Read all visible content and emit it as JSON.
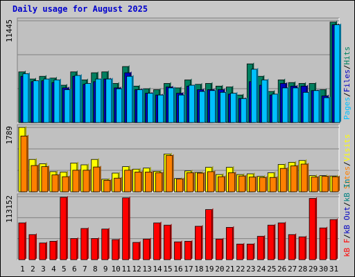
{
  "title": "Daily usage for August 2025",
  "colors": {
    "pages": "#00c0ff",
    "files": "#0000c0",
    "hits": "#008060",
    "visits": "#ffff00",
    "sites": "#ff8000",
    "kbin": "#008080",
    "kbout": "#0000c0",
    "kbf": "#ff0000",
    "weekend_label": "#008040",
    "legend_sep": "#000000"
  },
  "legends": {
    "top": [
      {
        "text": "Pages",
        "color": "#00c0ff"
      },
      {
        "text": "/",
        "color": "#000000"
      },
      {
        "text": "Files",
        "color": "#0000c0"
      },
      {
        "text": "/",
        "color": "#000000"
      },
      {
        "text": "Hits",
        "color": "#008060"
      }
    ],
    "mid": [
      {
        "text": "Sites",
        "color": "#ff8000"
      },
      {
        "text": "/",
        "color": "#000000"
      },
      {
        "text": "Visits",
        "color": "#ffff00"
      }
    ],
    "bot": [
      {
        "text": "kB F",
        "color": "#ff0000"
      },
      {
        "text": "/",
        "color": "#000000"
      },
      {
        "text": "kB Out",
        "color": "#0000c0"
      },
      {
        "text": "/",
        "color": "#000000"
      },
      {
        "text": "kB In",
        "color": "#008080"
      }
    ]
  },
  "chart_data": {
    "type": "bar",
    "title": "Daily usage for August 2025",
    "categories": [
      "1",
      "2",
      "3",
      "4",
      "5",
      "6",
      "7",
      "8",
      "9",
      "10",
      "11",
      "12",
      "13",
      "14",
      "15",
      "16",
      "17",
      "18",
      "19",
      "20",
      "21",
      "22",
      "23",
      "24",
      "25",
      "26",
      "27",
      "28",
      "29",
      "30",
      "31"
    ],
    "weekend_days": [
      2,
      3,
      9,
      10,
      16,
      17,
      23,
      24,
      30,
      31
    ],
    "panels": [
      {
        "id": "hits_files_pages",
        "ymax_label": "11445",
        "ymax": 11445,
        "grid": true,
        "series": [
          {
            "name": "Hits",
            "color": "#008060",
            "values": [
              5700,
              4900,
              5200,
              5000,
              4200,
              5700,
              4800,
              5600,
              5700,
              4400,
              6300,
              4100,
              3800,
              3700,
              4400,
              3900,
              4800,
              4300,
              4400,
              4100,
              4000,
              3100,
              6600,
              5200,
              3500,
              4800,
              4500,
              4400,
              4400,
              3700,
              11300
            ]
          },
          {
            "name": "Files",
            "color": "#0000c0",
            "values": [
              5200,
              4600,
              4700,
              4500,
              3900,
              5200,
              4300,
              4600,
              4900,
              3900,
              5600,
              3700,
              3300,
              3100,
              4000,
              3300,
              4100,
              3700,
              3700,
              3700,
              3200,
              2700,
              4600,
              4200,
              3100,
              4400,
              4100,
              4100,
              3600,
              3000,
              11000
            ]
          },
          {
            "name": "Pages",
            "color": "#00c0ff",
            "values": [
              5500,
              4700,
              4900,
              4800,
              3700,
              5300,
              4400,
              4900,
              4900,
              3800,
              5200,
              3700,
              3300,
              3100,
              3900,
              3100,
              4200,
              3500,
              3600,
              3400,
              3300,
              2700,
              6000,
              4800,
              3200,
              3900,
              3900,
              3400,
              3600,
              2800,
              11000
            ]
          }
        ]
      },
      {
        "id": "visits_sites",
        "ymax_label": "1789",
        "ymax": 1789,
        "grid": true,
        "series": [
          {
            "name": "Visits",
            "color": "#ffff00",
            "values": [
              1789,
              900,
              780,
              560,
              550,
              800,
              750,
              900,
              350,
              520,
              700,
              630,
              660,
              570,
              1050,
              370,
              580,
              540,
              680,
              480,
              680,
              480,
              500,
              430,
              530,
              760,
              820,
              870,
              450,
              450,
              440
            ]
          },
          {
            "name": "Sites",
            "color": "#ff8000",
            "values": [
              1550,
              730,
              700,
              470,
              420,
              600,
              600,
              690,
              320,
              380,
              600,
              550,
              550,
              530,
              1010,
              360,
              530,
              520,
              560,
              420,
              530,
              440,
              410,
              400,
              400,
              650,
              720,
              770,
              410,
              430,
              420
            ]
          }
        ]
      },
      {
        "id": "kb",
        "ymax_label": "113152",
        "ymax": 113152,
        "grid": true,
        "series": [
          {
            "name": "kB F",
            "color": "#ff0000",
            "values": [
              66000,
              45000,
              30000,
              33000,
              112000,
              38000,
              56000,
              38000,
              55000,
              36000,
              111000,
              31000,
              37000,
              66000,
              62000,
              32000,
              33000,
              60000,
              90000,
              37000,
              58000,
              28000,
              28000,
              42000,
              62000,
              66000,
              45000,
              41000,
              110000,
              57000,
              72000
            ]
          },
          {
            "name": "kB Out",
            "color": "#0000c0",
            "values": []
          },
          {
            "name": "kB In",
            "color": "#008080",
            "values": []
          }
        ]
      }
    ]
  }
}
